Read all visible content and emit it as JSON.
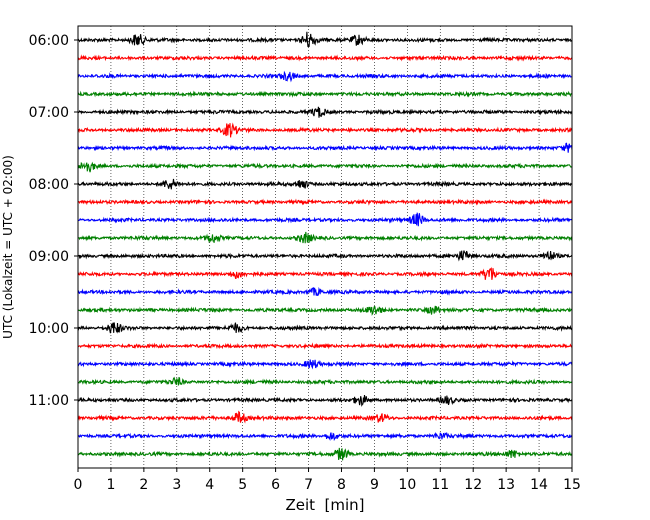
{
  "chart_data": {
    "type": "line",
    "title": "",
    "xlabel": "Zeit  [min]",
    "ylabel": "UTC (Lokalzeit = UTC + 02:00)",
    "xlim": [
      0,
      15
    ],
    "x_ticks": [
      0,
      1,
      2,
      3,
      4,
      5,
      6,
      7,
      8,
      9,
      10,
      11,
      12,
      13,
      14,
      15
    ],
    "x_tick_labels": [
      "0",
      "1",
      "2",
      "3",
      "4",
      "5",
      "6",
      "7",
      "8",
      "9",
      "10",
      "11",
      "12",
      "13",
      "14",
      "15"
    ],
    "y_tick_labels": [
      "06:00",
      "07:00",
      "08:00",
      "09:00",
      "10:00",
      "11:00"
    ],
    "grid": "vertical dotted lines at each minute",
    "trace_interval_min": 15,
    "trace_start": "06:00",
    "color_cycle": [
      "#000000",
      "#ff0000",
      "#0000ff",
      "#008000"
    ],
    "traces": [
      {
        "start": "06:00",
        "color": "#000000",
        "events": [
          {
            "t": 1.8,
            "amp": 1.2
          },
          {
            "t": 7.0,
            "amp": 1.6
          },
          {
            "t": 8.5,
            "amp": 1.0
          }
        ]
      },
      {
        "start": "06:15",
        "color": "#ff0000",
        "events": []
      },
      {
        "start": "06:30",
        "color": "#0000ff",
        "events": [
          {
            "t": 6.4,
            "amp": 0.8
          }
        ]
      },
      {
        "start": "06:45",
        "color": "#008000",
        "events": []
      },
      {
        "start": "07:00",
        "color": "#000000",
        "events": [
          {
            "t": 7.3,
            "amp": 0.9
          }
        ]
      },
      {
        "start": "07:15",
        "color": "#ff0000",
        "events": [
          {
            "t": 4.6,
            "amp": 1.3
          }
        ]
      },
      {
        "start": "07:30",
        "color": "#0000ff",
        "events": [
          {
            "t": 14.9,
            "amp": 0.8
          }
        ]
      },
      {
        "start": "07:45",
        "color": "#008000",
        "events": [
          {
            "t": 0.3,
            "amp": 1.0
          }
        ]
      },
      {
        "start": "08:00",
        "color": "#000000",
        "events": [
          {
            "t": 2.8,
            "amp": 0.9
          },
          {
            "t": 6.8,
            "amp": 0.9
          }
        ]
      },
      {
        "start": "08:15",
        "color": "#ff0000",
        "events": []
      },
      {
        "start": "08:30",
        "color": "#0000ff",
        "events": [
          {
            "t": 10.3,
            "amp": 1.3
          }
        ]
      },
      {
        "start": "08:45",
        "color": "#008000",
        "events": [
          {
            "t": 4.1,
            "amp": 0.8
          },
          {
            "t": 6.9,
            "amp": 0.9
          }
        ]
      },
      {
        "start": "09:00",
        "color": "#000000",
        "events": [
          {
            "t": 11.7,
            "amp": 1.0
          },
          {
            "t": 14.3,
            "amp": 0.9
          }
        ]
      },
      {
        "start": "09:15",
        "color": "#ff0000",
        "events": [
          {
            "t": 12.5,
            "amp": 1.4
          },
          {
            "t": 4.8,
            "amp": 0.7
          }
        ]
      },
      {
        "start": "09:30",
        "color": "#0000ff",
        "events": [
          {
            "t": 7.2,
            "amp": 0.7
          }
        ]
      },
      {
        "start": "09:45",
        "color": "#008000",
        "events": [
          {
            "t": 9.0,
            "amp": 0.8
          },
          {
            "t": 10.8,
            "amp": 0.7
          }
        ]
      },
      {
        "start": "10:00",
        "color": "#000000",
        "events": [
          {
            "t": 1.1,
            "amp": 1.1
          },
          {
            "t": 4.8,
            "amp": 0.8
          }
        ]
      },
      {
        "start": "10:15",
        "color": "#ff0000",
        "events": []
      },
      {
        "start": "10:30",
        "color": "#0000ff",
        "events": [
          {
            "t": 7.1,
            "amp": 0.8
          }
        ]
      },
      {
        "start": "10:45",
        "color": "#008000",
        "events": [
          {
            "t": 3.0,
            "amp": 0.7
          }
        ]
      },
      {
        "start": "11:00",
        "color": "#000000",
        "events": [
          {
            "t": 8.6,
            "amp": 0.9
          },
          {
            "t": 11.2,
            "amp": 0.7
          }
        ]
      },
      {
        "start": "11:15",
        "color": "#ff0000",
        "events": [
          {
            "t": 4.9,
            "amp": 1.1
          },
          {
            "t": 9.2,
            "amp": 0.7
          }
        ]
      },
      {
        "start": "11:30",
        "color": "#0000ff",
        "events": [
          {
            "t": 7.7,
            "amp": 0.7
          },
          {
            "t": 11.0,
            "amp": 0.6
          }
        ]
      },
      {
        "start": "11:45",
        "color": "#008000",
        "events": [
          {
            "t": 8.0,
            "amp": 1.2
          },
          {
            "t": 13.2,
            "amp": 0.8
          }
        ]
      }
    ]
  }
}
